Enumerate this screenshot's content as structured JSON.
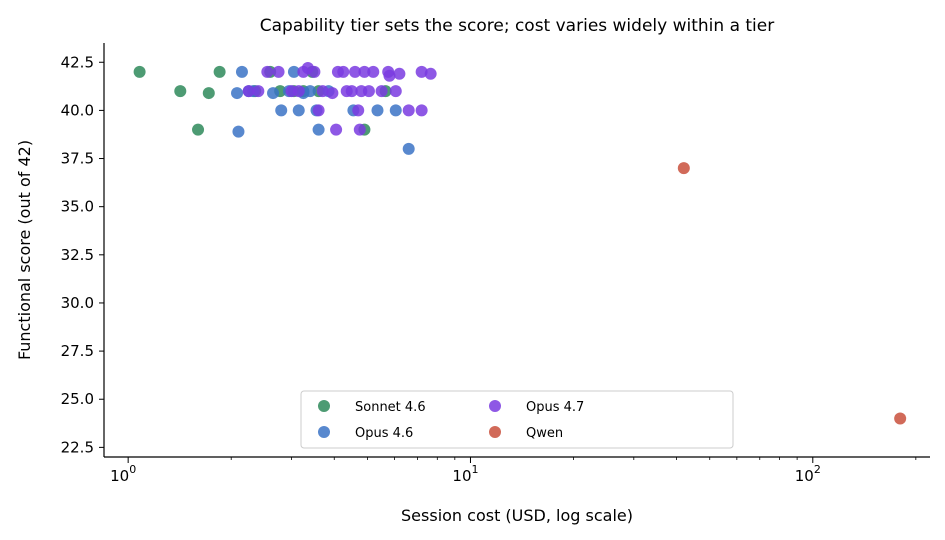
{
  "chart_data": {
    "type": "scatter",
    "title": "Capability tier sets the score; cost varies widely within a tier",
    "xlabel": "Session cost (USD, log scale)",
    "ylabel": "Functional score (out of 42)",
    "xscale": "log",
    "xlim": [
      0.85,
      220
    ],
    "ylim": [
      22,
      43.5
    ],
    "yticks": [
      "22.5",
      "25.0",
      "27.5",
      "30.0",
      "32.5",
      "35.0",
      "37.5",
      "40.0",
      "42.5"
    ],
    "xticks": [
      {
        "base": "10",
        "exp": "0"
      },
      {
        "base": "10",
        "exp": "1"
      },
      {
        "base": "10",
        "exp": "2"
      }
    ],
    "grid": false,
    "legend_position": "bottom-center",
    "series": [
      {
        "name": "Sonnet 4.6",
        "color": "#2e8a5a",
        "points": [
          [
            1.08,
            42
          ],
          [
            1.42,
            41
          ],
          [
            1.72,
            40.9
          ],
          [
            1.85,
            42
          ],
          [
            1.6,
            39
          ],
          [
            2.35,
            41
          ],
          [
            2.6,
            42
          ],
          [
            2.78,
            41
          ],
          [
            3.05,
            41
          ],
          [
            3.25,
            41
          ],
          [
            3.45,
            42
          ],
          [
            3.6,
            41
          ],
          [
            4.9,
            39
          ],
          [
            5.65,
            41
          ]
        ]
      },
      {
        "name": "Opus 4.6",
        "color": "#3b73c6",
        "points": [
          [
            2.08,
            40.9
          ],
          [
            2.15,
            42
          ],
          [
            2.25,
            41
          ],
          [
            2.32,
            41
          ],
          [
            2.1,
            38.9
          ],
          [
            2.65,
            40.9
          ],
          [
            2.8,
            40
          ],
          [
            2.95,
            41
          ],
          [
            3.05,
            42
          ],
          [
            3.15,
            40
          ],
          [
            3.25,
            40.9
          ],
          [
            3.4,
            41
          ],
          [
            3.55,
            40
          ],
          [
            3.6,
            39
          ],
          [
            3.85,
            41
          ],
          [
            4.55,
            40
          ],
          [
            5.35,
            40
          ],
          [
            6.05,
            40
          ],
          [
            6.6,
            38
          ]
        ]
      },
      {
        "name": "Opus 4.7",
        "color": "#7a3be0",
        "points": [
          [
            2.25,
            41
          ],
          [
            2.4,
            41
          ],
          [
            2.55,
            42
          ],
          [
            2.75,
            42
          ],
          [
            3.0,
            41
          ],
          [
            3.15,
            41
          ],
          [
            3.25,
            42
          ],
          [
            3.35,
            42.2
          ],
          [
            3.5,
            42
          ],
          [
            3.6,
            40
          ],
          [
            3.7,
            41
          ],
          [
            3.95,
            40.9
          ],
          [
            4.05,
            39
          ],
          [
            4.1,
            42
          ],
          [
            4.25,
            42
          ],
          [
            4.35,
            41
          ],
          [
            4.5,
            41
          ],
          [
            4.6,
            42
          ],
          [
            4.7,
            40
          ],
          [
            4.75,
            39
          ],
          [
            4.8,
            41
          ],
          [
            4.9,
            42
          ],
          [
            5.05,
            41
          ],
          [
            5.2,
            42
          ],
          [
            5.5,
            41
          ],
          [
            5.75,
            42
          ],
          [
            5.8,
            41.8
          ],
          [
            6.05,
            41
          ],
          [
            6.2,
            41.9
          ],
          [
            6.6,
            40
          ],
          [
            7.2,
            40
          ],
          [
            7.2,
            42
          ],
          [
            7.65,
            41.9
          ]
        ]
      },
      {
        "name": "Qwen",
        "color": "#c9503c",
        "points": [
          [
            42,
            37
          ],
          [
            180,
            24
          ]
        ]
      }
    ]
  }
}
